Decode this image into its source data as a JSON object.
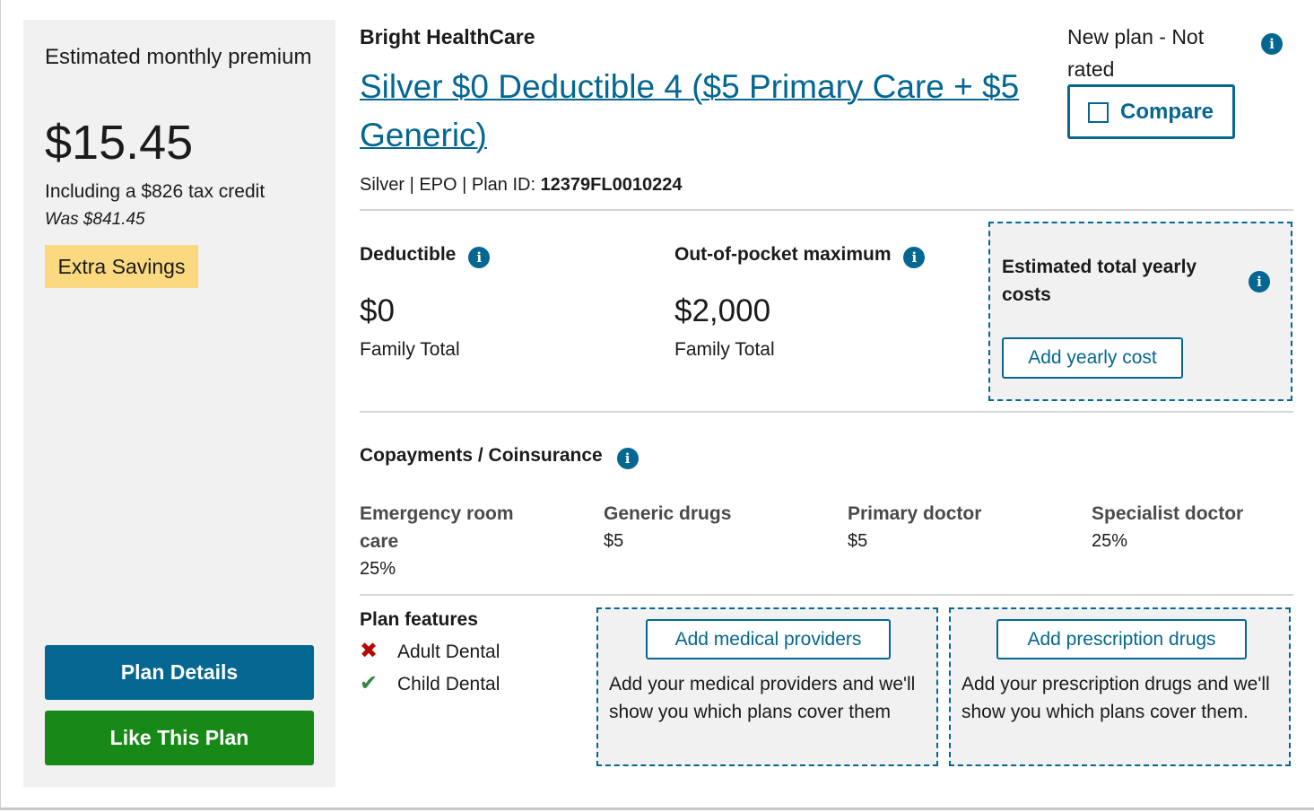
{
  "premium": {
    "label": "Estimated monthly premium",
    "amount": "$15.45",
    "tax_credit": "Including a $826 tax credit",
    "was": "Was $841.45",
    "badge": "Extra Savings",
    "details_button": "Plan Details",
    "like_button": "Like This Plan"
  },
  "plan": {
    "issuer": "Bright HealthCare",
    "name": "Silver $0 Deductible 4 ($5 Primary Care + $5 Generic)",
    "meta_prefix": "Silver | EPO | Plan ID: ",
    "plan_id": "12379FL0010224",
    "rating": "New plan - Not rated",
    "compare_label": "Compare"
  },
  "costs": {
    "deductible": {
      "label": "Deductible",
      "value": "$0",
      "sub": "Family Total"
    },
    "oop_max": {
      "label": "Out-of-pocket maximum",
      "value": "$2,000",
      "sub": "Family Total"
    },
    "yearly": {
      "label": "Estimated total yearly costs",
      "button": "Add yearly cost"
    }
  },
  "copays": {
    "heading": "Copayments / Coinsurance",
    "items": [
      {
        "label": "Emergency room care",
        "value": "25%"
      },
      {
        "label": "Generic drugs",
        "value": "$5"
      },
      {
        "label": "Primary doctor",
        "value": "$5"
      },
      {
        "label": "Specialist doctor",
        "value": "25%"
      }
    ]
  },
  "features": {
    "heading": "Plan features",
    "items": [
      {
        "label": "Adult Dental",
        "included": false,
        "icon": "x-icon"
      },
      {
        "label": "Child Dental",
        "included": true,
        "icon": "check-icon"
      }
    ]
  },
  "providers": {
    "button": "Add medical providers",
    "text": "Add your medical providers and we'll show you which plans cover them"
  },
  "drugs": {
    "button": "Add prescription drugs",
    "text": "Add your prescription drugs and we'll show you which plans cover them."
  },
  "icons": {
    "info": "info-icon",
    "checkbox": "checkbox-icon"
  },
  "colors": {
    "primary": "#046791",
    "success": "#178917",
    "badge": "#fad980",
    "panel": "#f1f1f1",
    "x": "#b50909",
    "check": "#2e8540"
  }
}
